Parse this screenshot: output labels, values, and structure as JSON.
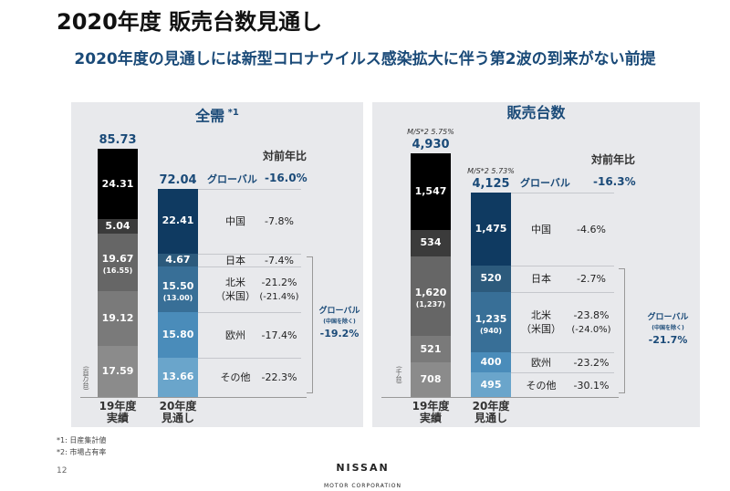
{
  "title": "2020年度 販売台数見通し",
  "subtitle": "2020年度の見通しには新型コロナウイルス感染拡大に伴う第2波の到来がない前提",
  "notes": [
    "*1: 日産集計値",
    "*2: 市場占有率"
  ],
  "page_number": "12",
  "logo": {
    "name": "NISSAN",
    "tagline": "MOTOR CORPORATION"
  },
  "colors": {
    "fy19": [
      "#8b8b8b",
      "#7a7a7a",
      "#666666",
      "#3b3b3b",
      "#000000"
    ],
    "fy20": [
      "#6aa5cb",
      "#4a8cba",
      "#386f97",
      "#2c5a7c",
      "#0f3a61"
    ],
    "accent": "#1a4a78"
  },
  "chart_data": [
    {
      "type": "bar",
      "stacked": true,
      "title": "全需",
      "title_note": "*1",
      "unit": "(百万台)",
      "categories": [
        "19年度\n実績",
        "20年度\n見通し"
      ],
      "totals": [
        "85.73",
        "72.04"
      ],
      "ms": [
        "",
        ""
      ],
      "segments": [
        "その他",
        "欧州",
        "北米",
        "日本",
        "中国"
      ],
      "segment_sub": [
        "",
        "",
        "（米国）",
        "",
        ""
      ],
      "fy19": [
        17.59,
        19.12,
        19.67,
        5.04,
        24.31
      ],
      "fy19_labels": [
        "17.59",
        "19.12",
        "19.67",
        "5.04",
        "24.31"
      ],
      "fy19_sub": [
        "",
        "",
        "(16.55)",
        "",
        ""
      ],
      "fy20": [
        13.66,
        15.8,
        15.5,
        4.67,
        22.41
      ],
      "fy20_labels": [
        "13.66",
        "15.80",
        "15.50",
        "4.67",
        "22.41"
      ],
      "fy20_sub": [
        "",
        "",
        "(13.00)",
        "",
        ""
      ],
      "yoy_header": "対前年比",
      "global_label": "グローバル",
      "global_yoy": "-16.0%",
      "yoy": [
        "-22.3%",
        "-17.4%",
        "-21.2%",
        "-7.4%",
        "-7.8%"
      ],
      "yoy_sub": [
        "",
        "",
        "(-21.4%)",
        "",
        ""
      ],
      "ex_china_label": "グローバル",
      "ex_china_note": "(中国を除く)",
      "ex_china_yoy": "-19.2%"
    },
    {
      "type": "bar",
      "stacked": true,
      "title": "販売台数",
      "title_note": "",
      "unit": "(千台)",
      "categories": [
        "19年度\n実績",
        "20年度\n見通し"
      ],
      "totals": [
        "4,930",
        "4,125"
      ],
      "ms": [
        "M/S*2 5.75%",
        "M/S*2 5.73%"
      ],
      "segments": [
        "その他",
        "欧州",
        "北米",
        "日本",
        "中国"
      ],
      "segment_sub": [
        "",
        "",
        "（米国）",
        "",
        ""
      ],
      "fy19": [
        708,
        521,
        1620,
        534,
        1547
      ],
      "fy19_labels": [
        "708",
        "521",
        "1,620",
        "534",
        "1,547"
      ],
      "fy19_sub": [
        "",
        "",
        "(1,237)",
        "",
        ""
      ],
      "fy20": [
        495,
        400,
        1235,
        520,
        1475
      ],
      "fy20_labels": [
        "495",
        "400",
        "1,235",
        "520",
        "1,475"
      ],
      "fy20_sub": [
        "",
        "",
        "(940)",
        "",
        ""
      ],
      "yoy_header": "対前年比",
      "global_label": "グローバル",
      "global_yoy": "-16.3%",
      "yoy": [
        "-30.1%",
        "-23.2%",
        "-23.8%",
        "-2.7%",
        "-4.6%"
      ],
      "yoy_sub": [
        "",
        "",
        "(-24.0%)",
        "",
        ""
      ],
      "ex_china_label": "グローバル",
      "ex_china_note": "(中国を除く)",
      "ex_china_yoy": "-21.7%"
    }
  ]
}
